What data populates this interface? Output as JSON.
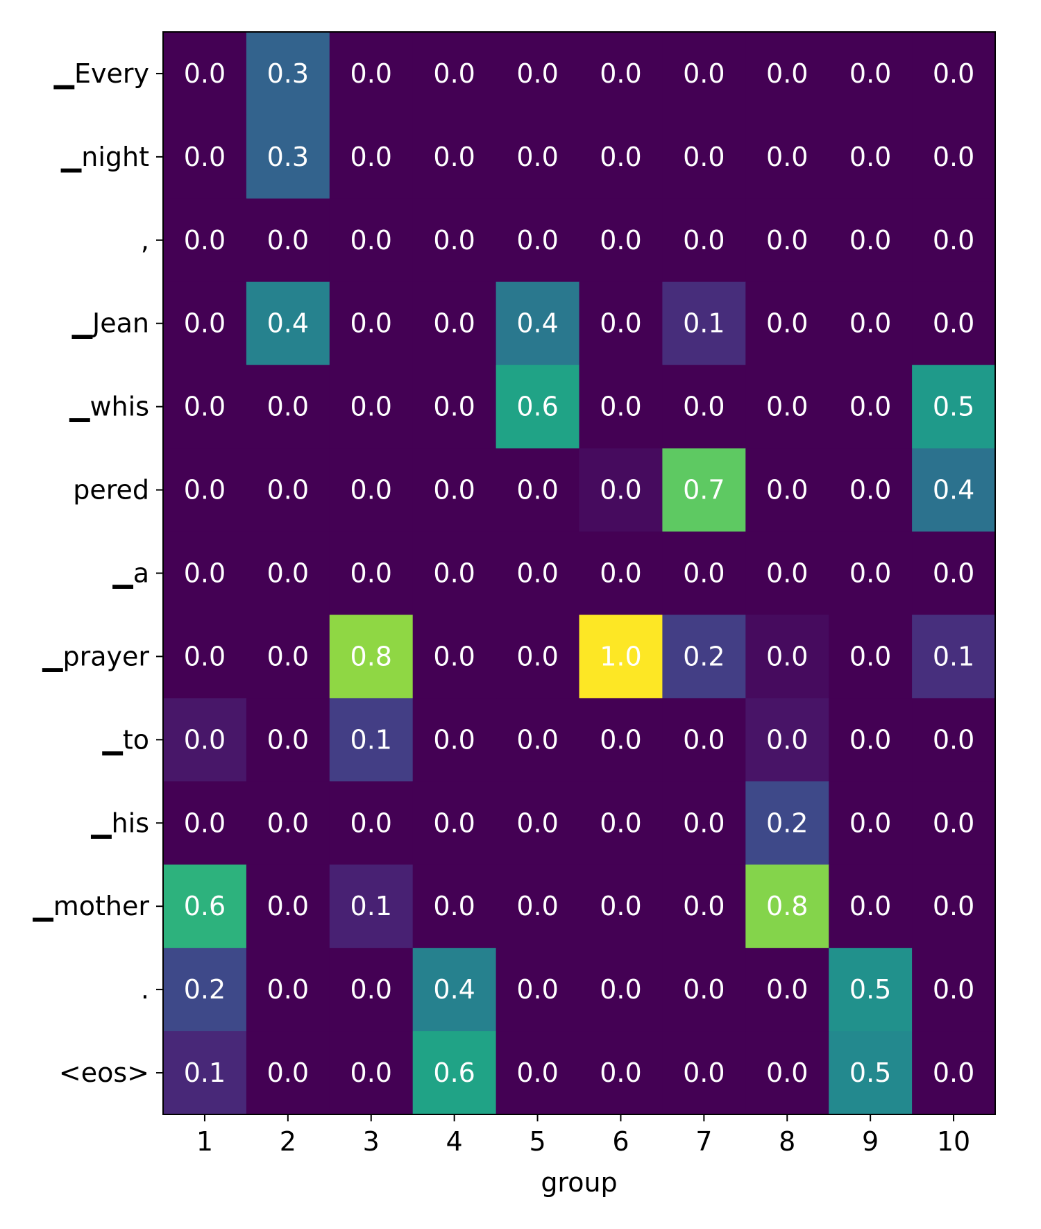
{
  "chart_data": {
    "type": "heatmap",
    "colormap": "viridis",
    "value_range": [
      0,
      1
    ],
    "xlabel": "group",
    "ylabel": "",
    "x_categories": [
      "1",
      "2",
      "3",
      "4",
      "5",
      "6",
      "7",
      "8",
      "9",
      "10"
    ],
    "y_categories": [
      "▁Every",
      "▁night",
      ",",
      "▁Jean",
      "▁whis",
      "pered",
      "▁a",
      "▁prayer",
      "▁to",
      "▁his",
      "▁mother",
      ".",
      "<eos>"
    ],
    "values": [
      [
        0.0,
        0.3,
        0.0,
        0.0,
        0.0,
        0.0,
        0.0,
        0.0,
        0.0,
        0.0
      ],
      [
        0.0,
        0.3,
        0.0,
        0.0,
        0.0,
        0.0,
        0.0,
        0.0,
        0.0,
        0.0
      ],
      [
        0.0,
        0.0,
        0.0,
        0.0,
        0.0,
        0.0,
        0.0,
        0.0,
        0.0,
        0.0
      ],
      [
        0.0,
        0.4,
        0.0,
        0.0,
        0.4,
        0.0,
        0.1,
        0.0,
        0.0,
        0.0
      ],
      [
        0.0,
        0.0,
        0.0,
        0.0,
        0.6,
        0.0,
        0.0,
        0.0,
        0.0,
        0.5
      ],
      [
        0.0,
        0.0,
        0.0,
        0.0,
        0.0,
        0.0,
        0.7,
        0.0,
        0.0,
        0.4
      ],
      [
        0.0,
        0.0,
        0.0,
        0.0,
        0.0,
        0.0,
        0.0,
        0.0,
        0.0,
        0.0
      ],
      [
        0.0,
        0.0,
        0.8,
        0.0,
        0.0,
        1.0,
        0.2,
        0.0,
        0.0,
        0.1
      ],
      [
        0.0,
        0.0,
        0.1,
        0.0,
        0.0,
        0.0,
        0.0,
        0.0,
        0.0,
        0.0
      ],
      [
        0.0,
        0.0,
        0.0,
        0.0,
        0.0,
        0.0,
        0.0,
        0.2,
        0.0,
        0.0
      ],
      [
        0.6,
        0.0,
        0.1,
        0.0,
        0.0,
        0.0,
        0.0,
        0.8,
        0.0,
        0.0
      ],
      [
        0.2,
        0.0,
        0.0,
        0.4,
        0.0,
        0.0,
        0.0,
        0.0,
        0.5,
        0.0
      ],
      [
        0.1,
        0.0,
        0.0,
        0.6,
        0.0,
        0.0,
        0.0,
        0.0,
        0.5,
        0.0
      ]
    ],
    "colors": [
      [
        "#440154",
        "#33638d",
        "#440154",
        "#440154",
        "#440154",
        "#440154",
        "#440154",
        "#440154",
        "#440154",
        "#440154"
      ],
      [
        "#440154",
        "#33638d",
        "#440154",
        "#440154",
        "#440154",
        "#440154",
        "#440154",
        "#440154",
        "#440154",
        "#440154"
      ],
      [
        "#440154",
        "#440154",
        "#440154",
        "#440154",
        "#440154",
        "#440154",
        "#440154",
        "#440154",
        "#440154",
        "#440154"
      ],
      [
        "#440154",
        "#26828e",
        "#440154",
        "#440154",
        "#2a788e",
        "#440154",
        "#472d7b",
        "#440154",
        "#440154",
        "#440154"
      ],
      [
        "#440154",
        "#440154",
        "#440154",
        "#440154",
        "#20a386",
        "#440154",
        "#440154",
        "#440154",
        "#440154",
        "#1f9a8a"
      ],
      [
        "#440154",
        "#440154",
        "#440154",
        "#440154",
        "#440154",
        "#460b5e",
        "#5ec962",
        "#440154",
        "#440154",
        "#2c728e"
      ],
      [
        "#440154",
        "#440154",
        "#440154",
        "#440154",
        "#440154",
        "#440154",
        "#440154",
        "#440154",
        "#440154",
        "#440154"
      ],
      [
        "#440154",
        "#440154",
        "#8fd744",
        "#440154",
        "#440154",
        "#fde725",
        "#433e85",
        "#460b5e",
        "#440154",
        "#472f7d"
      ],
      [
        "#481769",
        "#440154",
        "#433e85",
        "#440154",
        "#440154",
        "#440154",
        "#440154",
        "#481467",
        "#440154",
        "#440154"
      ],
      [
        "#440154",
        "#440154",
        "#440154",
        "#440154",
        "#440154",
        "#440154",
        "#440154",
        "#3e4989",
        "#440154",
        "#440154"
      ],
      [
        "#2db27d",
        "#440154",
        "#482173",
        "#440154",
        "#440154",
        "#440154",
        "#440154",
        "#84d44b",
        "#440154",
        "#440154"
      ],
      [
        "#3e4989",
        "#440154",
        "#440154",
        "#26818e",
        "#440154",
        "#440154",
        "#440154",
        "#440154",
        "#21918c",
        "#440154"
      ],
      [
        "#482878",
        "#440154",
        "#440154",
        "#20a386",
        "#440154",
        "#440154",
        "#440154",
        "#440154",
        "#23898e",
        "#440154"
      ]
    ]
  }
}
